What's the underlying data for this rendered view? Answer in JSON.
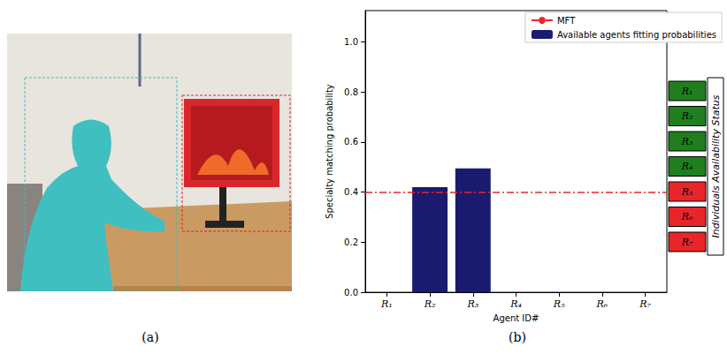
{
  "chart_data": {
    "type": "bar",
    "categories": [
      "R₁",
      "R₂",
      "R₃",
      "R₄",
      "R₅",
      "R₆",
      "R₇"
    ],
    "series": [
      {
        "name": "Available agents fitting probabilities",
        "color": "#1a1a6e",
        "values": [
          0,
          0.42,
          0.495,
          0,
          0,
          0,
          0
        ]
      }
    ],
    "threshold": {
      "name": "MFT",
      "value": 0.4,
      "color": "#e8262a",
      "line_style": "dashdot"
    },
    "x_label": "Agent ID#",
    "y_label": "Specialty matching probability",
    "ylim": [
      0,
      1.125
    ],
    "yticks": [
      {
        "value": 0,
        "label": "0.0"
      },
      {
        "value": 0.2,
        "label": "0.2"
      },
      {
        "value": 0.4,
        "label": "0.4"
      },
      {
        "value": 0.6,
        "label": "0.6"
      },
      {
        "value": 0.8,
        "label": "0.8"
      },
      {
        "value": 1,
        "label": "1.0"
      }
    ],
    "grid": false,
    "legend": "upper right",
    "availability_status": {
      "label": "Individuals Availability Status",
      "agents": [
        "R₁",
        "R₂",
        "R₃",
        "R₄",
        "R₅",
        "R₆",
        "R₇"
      ],
      "colors": [
        "#1f7f1f",
        "#1f7f1f",
        "#1f7f1f",
        "#1f7f1f",
        "#e8262a",
        "#e8262a",
        "#e8262a"
      ]
    }
  },
  "panels": [
    {
      "label": "(a)"
    },
    {
      "label": "(b)"
    }
  ]
}
